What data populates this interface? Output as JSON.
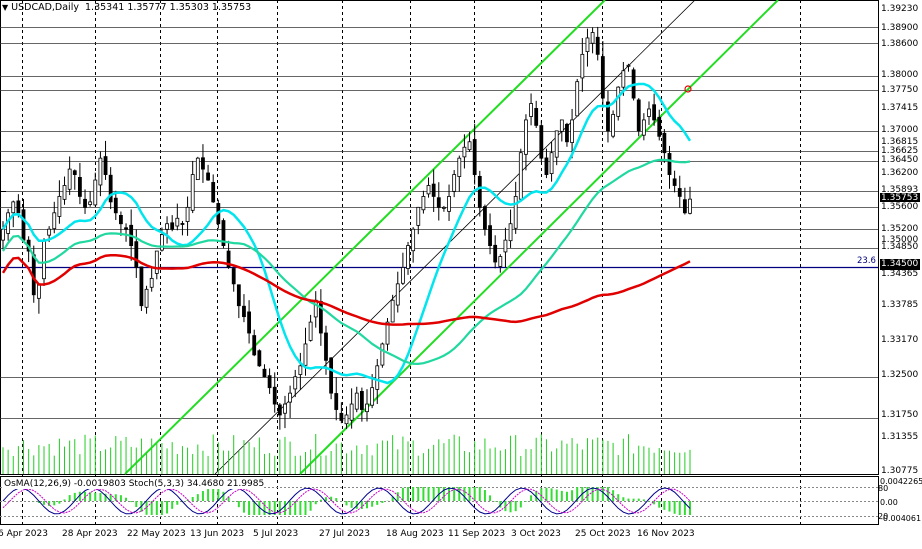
{
  "header": {
    "symbol": "USDCAD,Daily",
    "ohlc": "1.35341 1.35777 1.35303 1.35753"
  },
  "indicator_label": "OsMA(12,26,9) -0.0019803  Stoch(5,3,3) 34.4680 21.9985",
  "fib_label": "23.6",
  "price_labels": [
    {
      "text": "1.39230",
      "style": "plain"
    },
    {
      "text": "1.38900",
      "style": "boxed"
    },
    {
      "text": "1.38600",
      "style": "boxed"
    },
    {
      "text": "1.38000",
      "style": "boxed"
    },
    {
      "text": "1.37750",
      "style": "boxed"
    },
    {
      "text": "1.37415",
      "style": "plain"
    },
    {
      "text": "1.37000",
      "style": "boxed"
    },
    {
      "text": "1.36815",
      "style": "plain"
    },
    {
      "text": "1.36625",
      "style": "boxed"
    },
    {
      "text": "1.36450",
      "style": "boxed"
    },
    {
      "text": "1.36200",
      "style": "plain"
    },
    {
      "text": "1.35893",
      "style": "boxed"
    },
    {
      "text": "1.35753",
      "style": "dark"
    },
    {
      "text": "1.35600",
      "style": "boxed"
    },
    {
      "text": "1.35200",
      "style": "boxed"
    },
    {
      "text": "1.35000",
      "style": "plain"
    },
    {
      "text": "1.34850",
      "style": "boxed"
    },
    {
      "text": "1.34500",
      "style": "dark"
    },
    {
      "text": "1.34365",
      "style": "plain"
    },
    {
      "text": "1.33785",
      "style": "plain"
    },
    {
      "text": "1.33170",
      "style": "plain"
    },
    {
      "text": "1.32500",
      "style": "boxed"
    },
    {
      "text": "1.31750",
      "style": "boxed"
    },
    {
      "text": "1.31355",
      "style": "plain"
    },
    {
      "text": "1.30775",
      "style": "plain"
    }
  ],
  "osc_labels": [
    {
      "text": "0.0042265"
    },
    {
      "text": "80"
    },
    {
      "text": "0.00"
    },
    {
      "text": "20"
    },
    {
      "text": "-0.004061"
    }
  ],
  "date_labels": [
    "6 Apr 2023",
    "28 Apr 2023",
    "22 May 2023",
    "13 Jun 2023",
    "5 Jul 2023",
    "27 Jul 2023",
    "18 Aug 2023",
    "11 Sep 2023",
    "3 Oct 2023",
    "25 Oct 2023",
    "16 Nov 2023"
  ],
  "colors": {
    "candle": "#000000",
    "ma_fast": "#00e5ee",
    "ma_mid": "#20d8a0",
    "ma_slow": "#e00000",
    "channel": "#22dd22",
    "level": "#000080",
    "histogram": "#33dd33",
    "volume": "#22cc22"
  },
  "chart_data": {
    "type": "candlestick",
    "symbol": "USDCAD",
    "timeframe": "Daily",
    "last_ohlc": {
      "open": 1.35341,
      "high": 1.35777,
      "low": 1.35303,
      "close": 1.35753
    },
    "ylim": [
      1.305,
      1.395
    ],
    "levels": [
      1.389,
      1.386,
      1.38,
      1.3775,
      1.37,
      1.36625,
      1.3645,
      1.35893,
      1.356,
      1.352,
      1.3485,
      1.345,
      1.325,
      1.3175
    ],
    "key_levels": [
      1.345
    ],
    "close_series": [
      1.352,
      1.355,
      1.357,
      1.355,
      1.35,
      1.348,
      1.34,
      1.342,
      1.35,
      1.352,
      1.355,
      1.358,
      1.36,
      1.363,
      1.362,
      1.358,
      1.356,
      1.357,
      1.361,
      1.365,
      1.362,
      1.357,
      1.355,
      1.353,
      1.352,
      1.349,
      1.345,
      1.338,
      1.341,
      1.343,
      1.348,
      1.351,
      1.353,
      1.352,
      1.354,
      1.353,
      1.356,
      1.362,
      1.365,
      1.363,
      1.361,
      1.357,
      1.353,
      1.349,
      1.345,
      1.342,
      1.338,
      1.336,
      1.333,
      1.329,
      1.327,
      1.325,
      1.323,
      1.32,
      1.318,
      1.32,
      1.322,
      1.325,
      1.327,
      1.331,
      1.335,
      1.339,
      1.333,
      1.328,
      1.322,
      1.319,
      1.317,
      1.318,
      1.32,
      1.322,
      1.319,
      1.32,
      1.323,
      1.327,
      1.331,
      1.335,
      1.339,
      1.342,
      1.345,
      1.349,
      1.352,
      1.356,
      1.358,
      1.36,
      1.358,
      1.356,
      1.356,
      1.358,
      1.362,
      1.365,
      1.367,
      1.368,
      1.362,
      1.356,
      1.352,
      1.349,
      1.346,
      1.347,
      1.35,
      1.353,
      1.358,
      1.366,
      1.372,
      1.375,
      1.371,
      1.365,
      1.362,
      1.366,
      1.37,
      1.372,
      1.368,
      1.372,
      1.379,
      1.384,
      1.387,
      1.388,
      1.384,
      1.376,
      1.37,
      1.373,
      1.378,
      1.381,
      1.382,
      1.376,
      1.37,
      1.372,
      1.374,
      1.372,
      1.369,
      1.366,
      1.362,
      1.36,
      1.358,
      1.355,
      1.3575
    ]
  }
}
